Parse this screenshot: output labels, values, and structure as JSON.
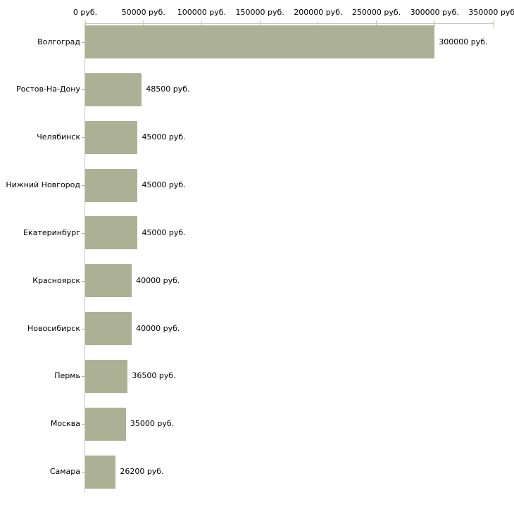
{
  "chart_data": {
    "type": "bar",
    "orientation": "horizontal",
    "title": "",
    "xlabel": "",
    "ylabel": "",
    "grid": false,
    "legend": "none",
    "categories": [
      "Волгоград",
      "Ростов-На-Дону",
      "Челябинск",
      "Нижний Новгород",
      "Екатеринбург",
      "Красноярск",
      "Новосибирск",
      "Пермь",
      "Москва",
      "Самара"
    ],
    "values": [
      300000,
      48500,
      45000,
      45000,
      45000,
      40000,
      40000,
      36500,
      35000,
      26200
    ],
    "value_labels": [
      "300000 руб.",
      "48500 руб.",
      "45000 руб.",
      "45000 руб.",
      "45000 руб.",
      "40000 руб.",
      "40000 руб.",
      "36500 руб.",
      "35000 руб.",
      "26200 руб."
    ],
    "x_axis": {
      "position": "top",
      "min": 0,
      "max": 350000,
      "tick_interval": 50000,
      "tick_labels": [
        "0 руб.",
        "50000 руб.",
        "100000 руб.",
        "150000 руб.",
        "200000 руб.",
        "250000 руб.",
        "300000 руб.",
        "350000 руб."
      ]
    },
    "colors": {
      "bar_fill": "#acb196",
      "axis_line": "#c6c6c6",
      "top_tick_mark": "#cccc9f",
      "left_tick_mark": "#a8a878",
      "text": "#000000",
      "background": "#ffffff"
    }
  }
}
